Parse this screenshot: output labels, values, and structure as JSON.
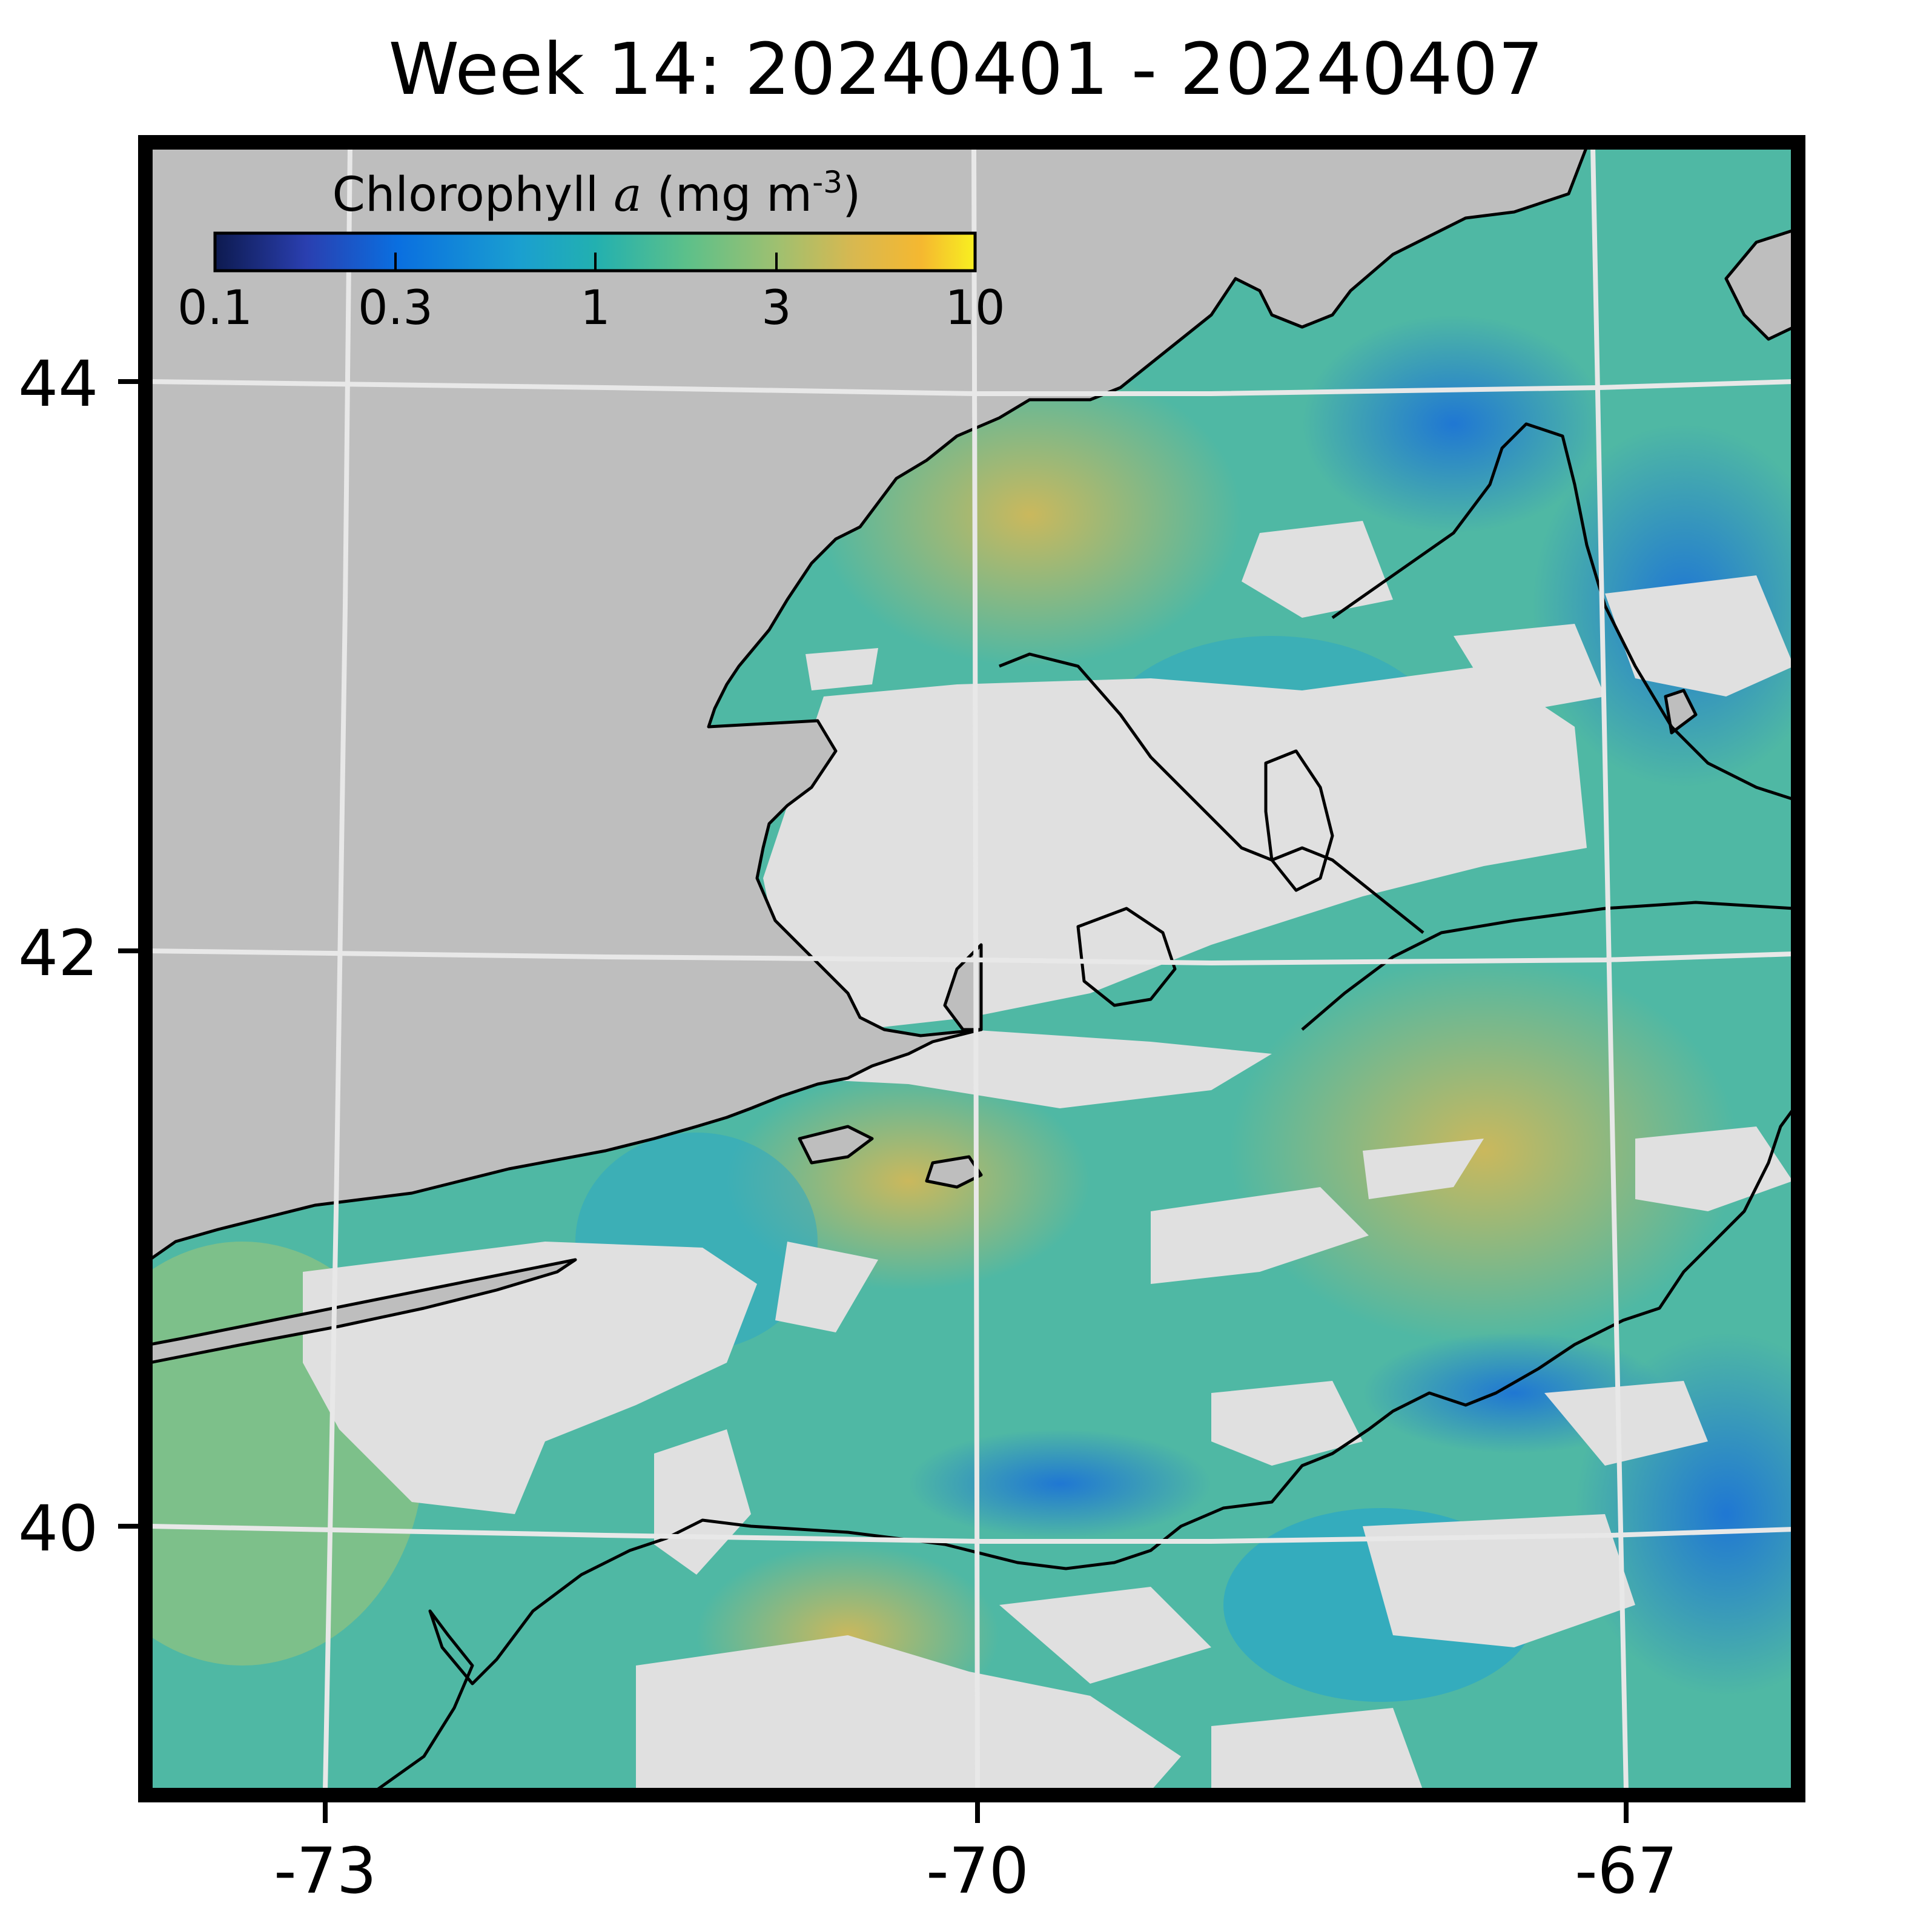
{
  "title": "Week 14: 20240401 - 20240407",
  "colorbar": {
    "label_prefix": "Chlorophyll ",
    "label_var": "a",
    "label_units": " (mg m",
    "label_exp": "-3",
    "label_close": ")",
    "scale": "log",
    "range": [
      0.1,
      10
    ],
    "ticks": [
      "0.1",
      "0.3",
      "1",
      "3",
      "10"
    ],
    "colors": [
      "#0d1a4f",
      "#2a3fb0",
      "#0a6fe0",
      "#1a9fd0",
      "#22b0b0",
      "#5cc08a",
      "#9fc070",
      "#d8b850",
      "#f5b830",
      "#f8f020"
    ]
  },
  "axes": {
    "x_ticks": [
      "-73",
      "-70",
      "-67"
    ],
    "y_ticks": [
      "44",
      "42",
      "40"
    ],
    "grid": true
  },
  "colors": {
    "land": "#bebebe",
    "no_data": "#e0e0e0",
    "coastline": "#000000",
    "graticule": "#e8e8e8",
    "frame": "#000000"
  }
}
